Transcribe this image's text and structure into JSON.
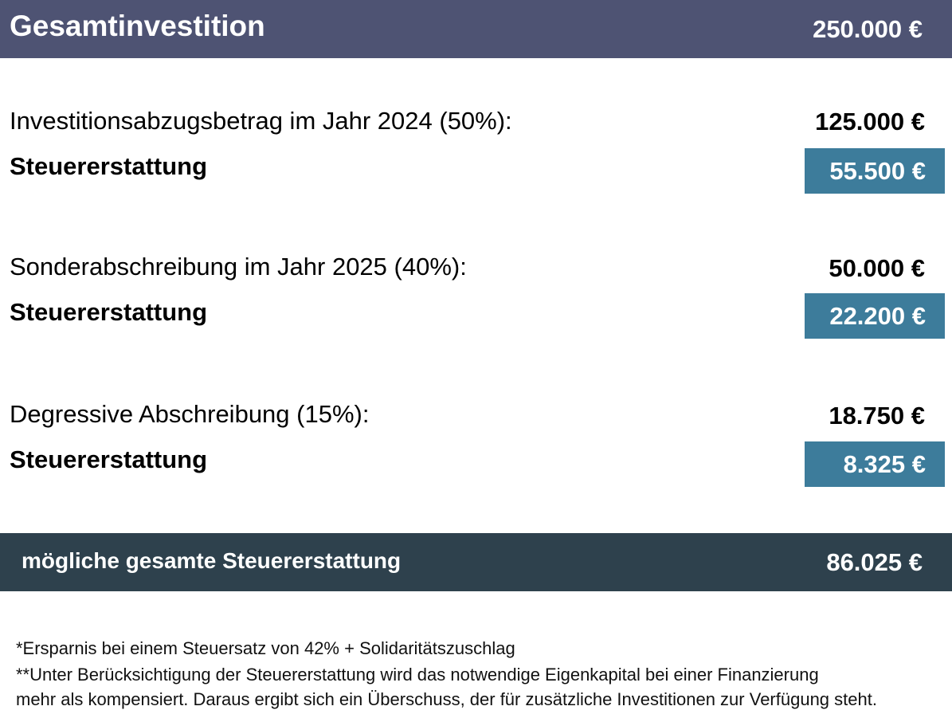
{
  "header": {
    "title": "Gesamtinvestition",
    "value": "250.000 €",
    "background": "#4e5373"
  },
  "sections": [
    {
      "label": "Investitionsabzugsbetrag im Jahr 2024 (50%):",
      "amount": "125.000 €",
      "refund_label": "Steuererstattung",
      "refund_value": "55.500 €"
    },
    {
      "label": "Sonderabschreibung im Jahr 2025 (40%):",
      "amount": "50.000 €",
      "refund_label": "Steuererstattung",
      "refund_value": "22.200 €"
    },
    {
      "label": "Degressive Abschreibung (15%):",
      "amount": "18.750 €",
      "refund_label": "Steuererstattung",
      "refund_value": "8.325 €"
    }
  ],
  "refund_box_color": "#3d7c9b",
  "total": {
    "label": "mögliche gesamte Steuererstattung",
    "value": "86.025 €",
    "background": "#2e414d"
  },
  "footnotes": [
    "*Ersparnis bei einem Steuersatz von 42% + Solidaritätszuschlag",
    "**Unter Berücksichtigung der Steuererstattung wird das notwendige Eigenkapital bei einer Finanzierung",
    "mehr als kompensiert. Daraus ergibt sich ein Überschuss, der für zusätzliche Investitionen zur Verfügung steht."
  ]
}
